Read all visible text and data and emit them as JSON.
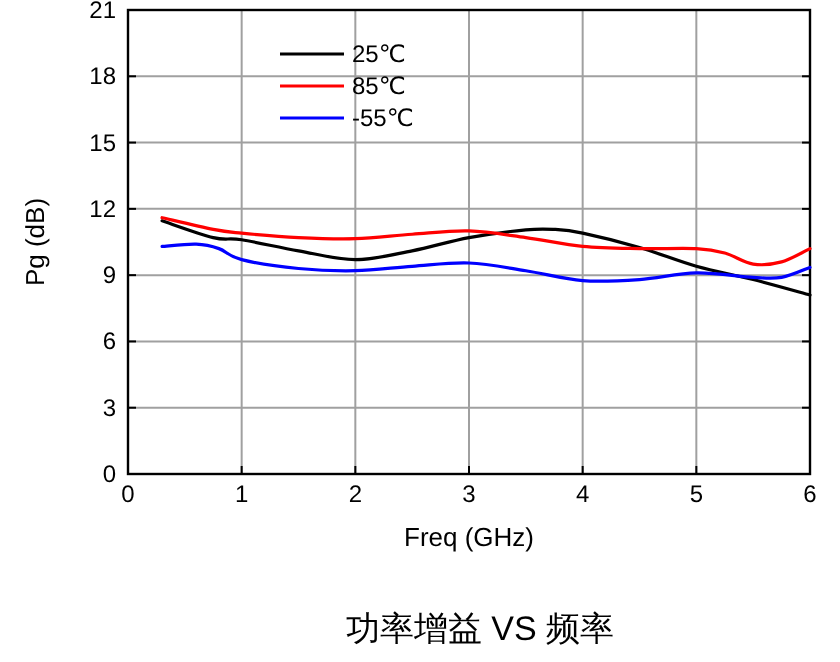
{
  "chart_data": {
    "type": "line",
    "xlabel": "Freq (GHz)",
    "ylabel": "Pg (dB)",
    "annotations": [
      "功率增益 VS 频率"
    ],
    "xlim": [
      0,
      6
    ],
    "xticks": [
      0,
      1,
      2,
      3,
      4,
      5,
      6
    ],
    "ylim": [
      0,
      21
    ],
    "yticks": [
      0,
      3,
      6,
      9,
      12,
      15,
      18,
      21
    ],
    "grid": true,
    "legend": "top left",
    "line_style": "solid",
    "marker": "none",
    "series": [
      {
        "name": "25℃",
        "color": "#000000",
        "x": [
          0.3,
          0.75,
          1.0,
          1.5,
          2.0,
          2.5,
          3.0,
          3.5,
          3.75,
          4.0,
          4.5,
          5.0,
          5.5,
          6.0
        ],
        "values": [
          11.46,
          10.7,
          10.6,
          10.1,
          9.7,
          10.1,
          10.7,
          11.05,
          11.07,
          10.9,
          10.25,
          9.4,
          8.8,
          8.1
        ]
      },
      {
        "name": "85℃",
        "color": "#ff0000",
        "x": [
          0.3,
          0.75,
          1.0,
          1.5,
          2.0,
          2.5,
          3.0,
          3.5,
          4.0,
          4.5,
          5.0,
          5.25,
          5.5,
          5.75,
          6.0
        ],
        "values": [
          11.6,
          11.07,
          10.9,
          10.7,
          10.65,
          10.85,
          11.0,
          10.7,
          10.3,
          10.2,
          10.2,
          10.0,
          9.5,
          9.6,
          10.2
        ]
      },
      {
        "name": "-55℃",
        "color": "#0000ff",
        "x": [
          0.3,
          0.6,
          0.8,
          1.0,
          1.5,
          2.0,
          2.5,
          3.0,
          3.5,
          4.0,
          4.5,
          5.0,
          5.5,
          5.75,
          6.0
        ],
        "values": [
          10.3,
          10.4,
          10.2,
          9.7,
          9.3,
          9.2,
          9.4,
          9.55,
          9.2,
          8.75,
          8.8,
          9.1,
          8.9,
          8.9,
          9.35
        ]
      }
    ]
  }
}
